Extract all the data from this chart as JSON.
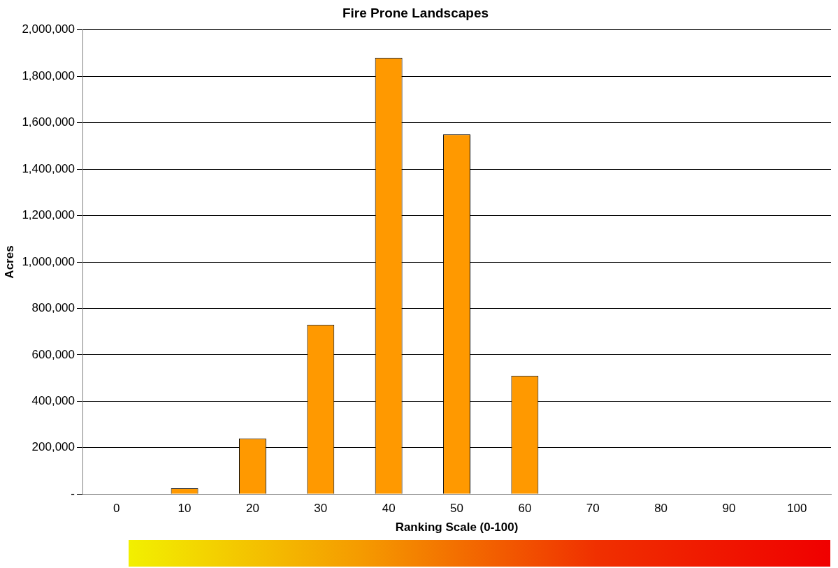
{
  "chart_data": {
    "type": "bar",
    "title": "Fire Prone Landscapes",
    "xlabel": "Ranking Scale (0-100)",
    "ylabel": "Acres",
    "categories": [
      "0",
      "10",
      "20",
      "30",
      "40",
      "50",
      "60",
      "70",
      "80",
      "90",
      "100"
    ],
    "values": [
      0,
      25000,
      240000,
      730000,
      1880000,
      1550000,
      510000,
      0,
      0,
      0,
      0
    ],
    "color": "#ff9900",
    "ylim": [
      0,
      2000000
    ],
    "yticks": [
      {
        "value": 0,
        "label": "-"
      },
      {
        "value": 200000,
        "label": "200,000"
      },
      {
        "value": 400000,
        "label": "400,000"
      },
      {
        "value": 600000,
        "label": "600,000"
      },
      {
        "value": 800000,
        "label": "800,000"
      },
      {
        "value": 1000000,
        "label": "1,000,000"
      },
      {
        "value": 1200000,
        "label": "1,200,000"
      },
      {
        "value": 1400000,
        "label": "1,400,000"
      },
      {
        "value": 1600000,
        "label": "1,600,000"
      },
      {
        "value": 1800000,
        "label": "1,800,000"
      },
      {
        "value": 2000000,
        "label": "2,000,000"
      }
    ],
    "grid": "y",
    "legend": false
  }
}
